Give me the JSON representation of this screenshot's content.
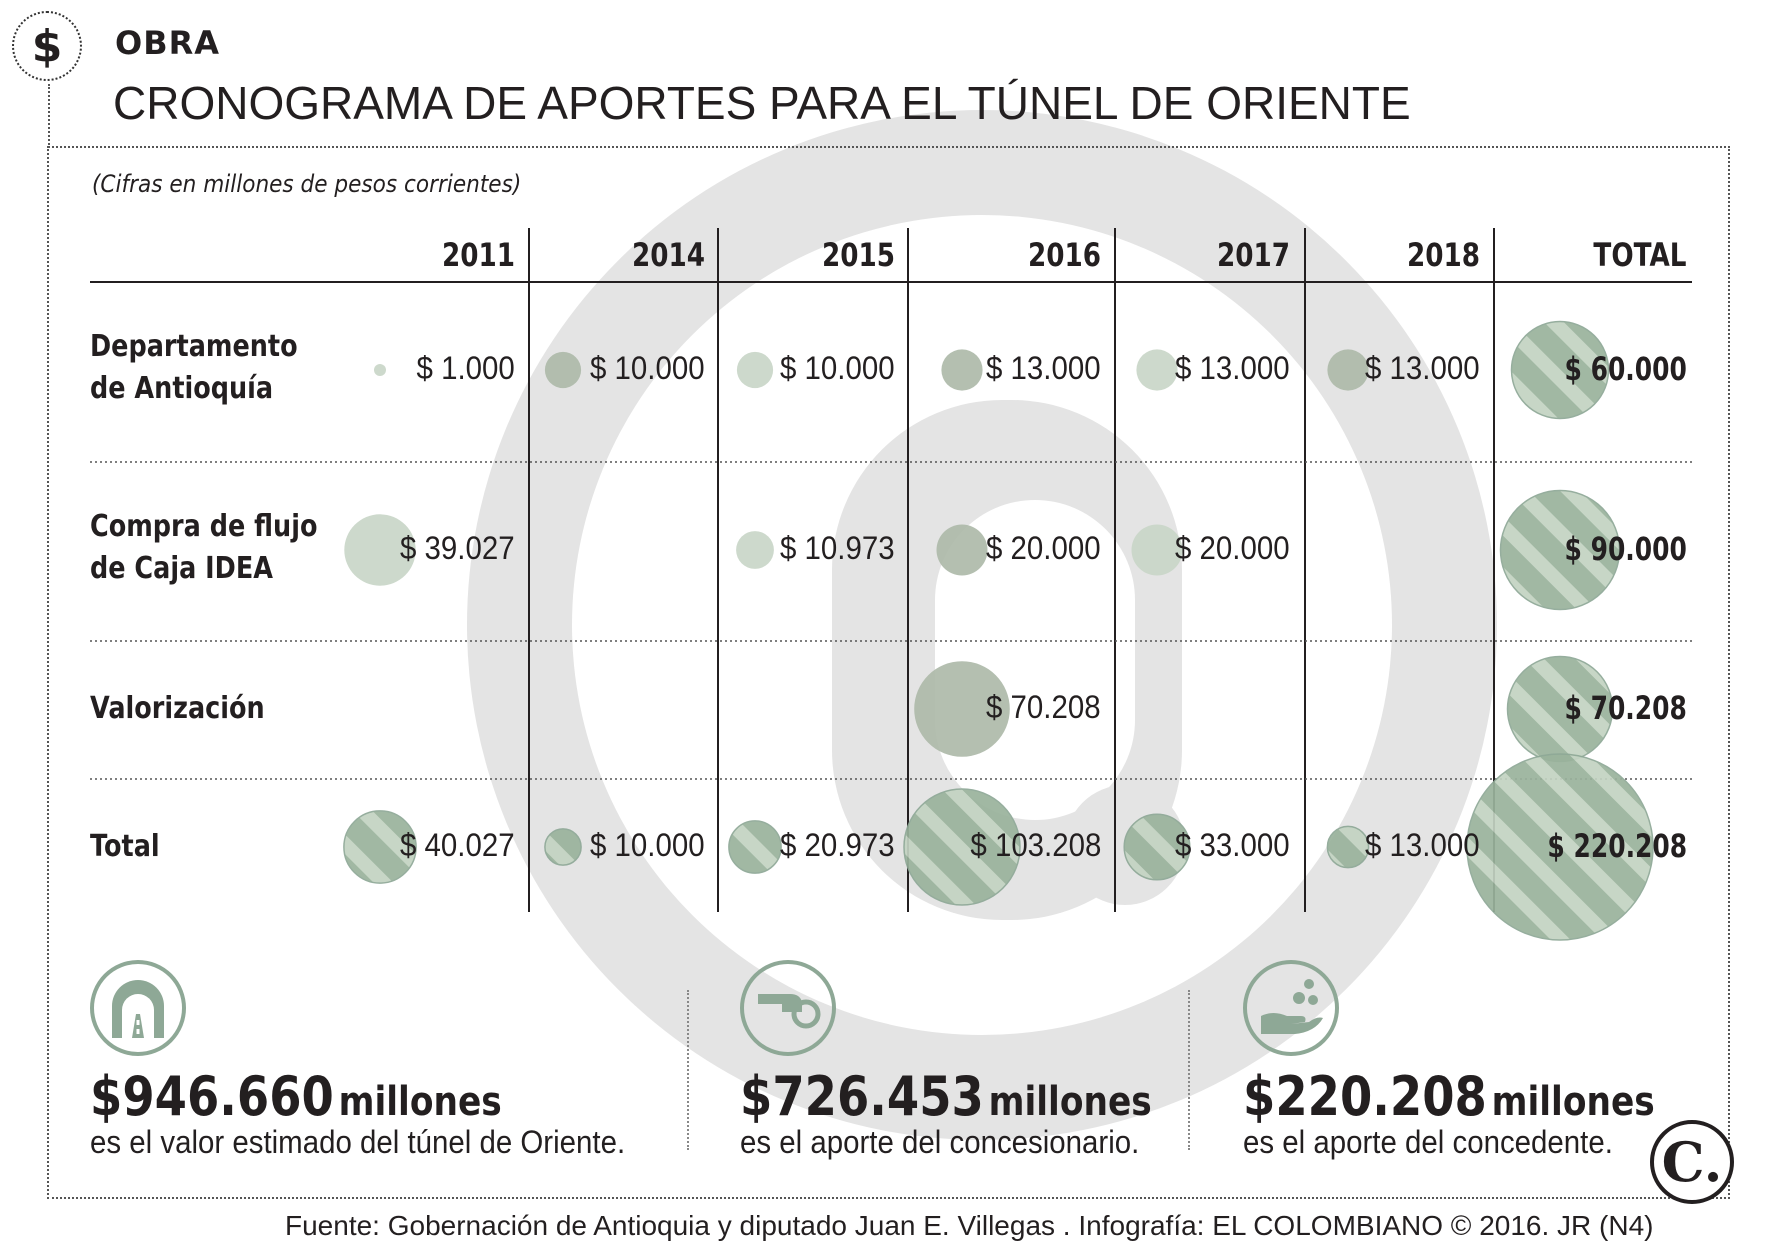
{
  "header": {
    "badge_symbol": "$",
    "kicker": "OBRA",
    "title": "CRONOGRAMA DE APORTES PARA EL TÚNEL DE ORIENTE"
  },
  "note": "(Cifras en millones de pesos corrientes)",
  "chart_data": {
    "type": "table",
    "columns": [
      "2011",
      "2014",
      "2015",
      "2016",
      "2017",
      "2018",
      "TOTAL"
    ],
    "rows": [
      {
        "label_lines": [
          "Departamento",
          "de Antioquía"
        ],
        "cells": [
          "$ 1.000",
          "$ 10.000",
          "$ 10.000",
          "$ 13.000",
          "$ 13.000",
          "$ 13.000",
          "$ 60.000"
        ],
        "values": [
          1000,
          10000,
          10000,
          13000,
          13000,
          13000,
          60000
        ]
      },
      {
        "label_lines": [
          "Compra de flujo",
          "de Caja IDEA"
        ],
        "cells": [
          "$ 39.027",
          "",
          "$ 10.973",
          "$ 20.000",
          "$ 20.000",
          "",
          "$ 90.000"
        ],
        "values": [
          39027,
          null,
          10973,
          20000,
          20000,
          null,
          90000
        ]
      },
      {
        "label_lines": [
          "Valorización"
        ],
        "cells": [
          "",
          "",
          "",
          "$ 70.208",
          "",
          "",
          "$ 70.208"
        ],
        "values": [
          null,
          null,
          null,
          70208,
          null,
          null,
          70208
        ]
      },
      {
        "label_lines": [
          "Total"
        ],
        "cells": [
          "$ 40.027",
          "$ 10.000",
          "$ 20.973",
          "$ 103.208",
          "$ 33.000",
          "$ 13.000",
          "$ 220.208"
        ],
        "values": [
          40027,
          10000,
          20973,
          103208,
          33000,
          13000,
          220208
        ]
      }
    ],
    "bubble_colors": {
      "light": "#c9d6c8",
      "mid": "#aebaa9",
      "total_fill": "#9ab39c",
      "total_stripe": "#c3d3c2"
    }
  },
  "stats": [
    {
      "icon": "tunnel-icon",
      "amount": "$946.660",
      "unit": "millones",
      "caption": "es el valor estimado del túnel de Oriente."
    },
    {
      "icon": "hand-coin-icon",
      "amount": "$726.453",
      "unit": "millones",
      "caption": "es el aporte del concesionario."
    },
    {
      "icon": "hand-coins-icon",
      "amount": "$220.208",
      "unit": "millones",
      "caption": "es el aporte del concedente."
    }
  ],
  "logo": "C.",
  "source": "Fuente: Gobernación de Antioquia  y diputado Juan E. Villegas . Infografía: EL COLOMBIANO © 2016. JR (N4)"
}
